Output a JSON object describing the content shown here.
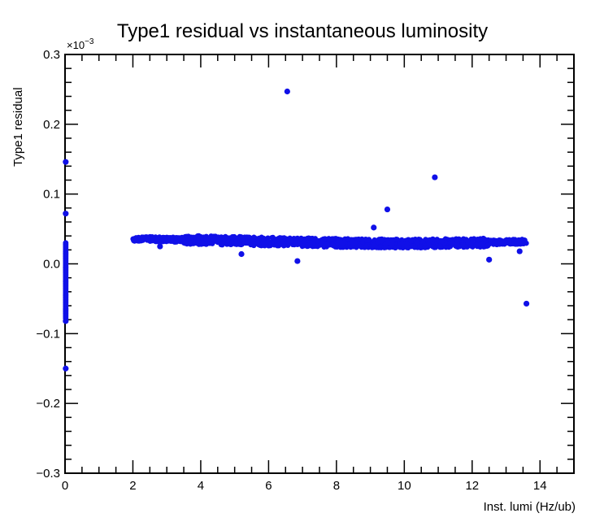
{
  "chart_data": {
    "type": "scatter",
    "title": "Type1 residual  vs instantaneous luminosity",
    "xlabel": "Inst. lumi (Hz/ub)",
    "ylabel": "Type1 residual",
    "y_multiplier": "×10",
    "y_multiplier_exp": "−3",
    "xlim": [
      0,
      15
    ],
    "ylim": [
      -0.3,
      0.3
    ],
    "x_ticks": [
      0,
      2,
      4,
      6,
      8,
      10,
      12,
      14
    ],
    "y_ticks": [
      -0.3,
      -0.2,
      -0.1,
      0.0,
      0.1,
      0.2,
      0.3
    ],
    "x_tick_labels": [
      "0",
      "2",
      "4",
      "6",
      "8",
      "10",
      "12",
      "14"
    ],
    "y_tick_labels": [
      "−0.3",
      "−0.2",
      "−0.1",
      "0.0",
      "0.1",
      "0.2",
      "0.3"
    ],
    "grid": false,
    "legend": "none",
    "marker_color": "#1010e8",
    "band": {
      "x_start": 2.0,
      "x_end": 13.6,
      "y_center": [
        [
          2.0,
          0.036
        ],
        [
          4.0,
          0.034
        ],
        [
          6.0,
          0.032
        ],
        [
          8.0,
          0.03
        ],
        [
          10.0,
          0.029
        ],
        [
          12.0,
          0.03
        ],
        [
          13.6,
          0.032
        ]
      ],
      "half_width": 0.005
    },
    "points": [
      {
        "x": 6.55,
        "y": 0.247
      },
      {
        "x": 10.9,
        "y": 0.124
      },
      {
        "x": 9.5,
        "y": 0.078
      },
      {
        "x": 9.1,
        "y": 0.052
      },
      {
        "x": 6.85,
        "y": 0.004
      },
      {
        "x": 13.6,
        "y": -0.057
      },
      {
        "x": 13.4,
        "y": 0.018
      },
      {
        "x": 12.5,
        "y": 0.006
      },
      {
        "x": 5.2,
        "y": 0.014
      },
      {
        "x": 2.8,
        "y": 0.025
      },
      {
        "x": 0.02,
        "y": 0.146
      },
      {
        "x": 0.02,
        "y": 0.072
      },
      {
        "x": 0.02,
        "y": -0.082
      },
      {
        "x": 0.02,
        "y": -0.15
      }
    ],
    "zero_column": {
      "x": 0.02,
      "y_min": -0.078,
      "y_max": 0.03
    }
  }
}
